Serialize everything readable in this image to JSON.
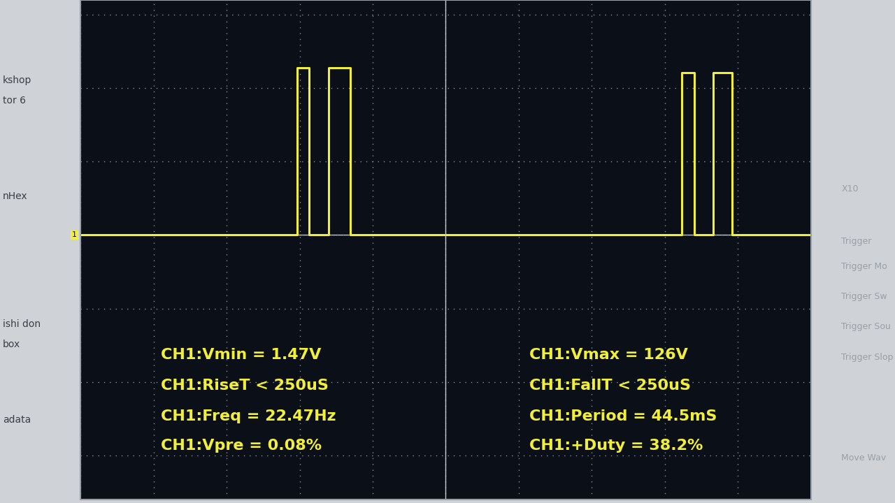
{
  "chart_data": {
    "type": "line",
    "x": [
      0,
      2.97,
      2.97,
      3.13,
      3.13,
      3.4,
      3.4,
      3.69,
      3.69,
      8.23,
      8.23,
      8.4,
      8.4,
      8.66,
      8.66,
      8.92,
      8.92,
      10
    ],
    "values": [
      0,
      0,
      2.28,
      2.28,
      0,
      0,
      2.28,
      2.28,
      0,
      0,
      2.21,
      2.21,
      0,
      0,
      2.21,
      2.21,
      0,
      0
    ],
    "color": "#f2ef3c",
    "xlim": [
      0,
      10
    ],
    "ylim": [
      -3.6,
      3.2
    ],
    "xticks": [
      0,
      1,
      2,
      3,
      4,
      5,
      6,
      7,
      8,
      9,
      10
    ],
    "yticks": [
      -3,
      -2,
      -1,
      0,
      1,
      2,
      3
    ],
    "grid": true,
    "tick_labels": false,
    "channel_marker": "1",
    "annotations": [
      "CH1:Vmin = 1.47V",
      "CH1:RiseT < 250uS",
      "CH1:Freq = 22.47Hz",
      "CH1:Vpre = 0.08%",
      "CH1:Vmax = 126V",
      "CH1:FallT < 250uS",
      "CH1:Period = 44.5mS",
      "CH1:+Duty = 38.2%"
    ],
    "desktop_labels": [
      "kshop",
      "tor 6",
      "nHex",
      "ishi don",
      "box",
      "adata"
    ],
    "side_panel": [
      "X10",
      "Trigger",
      "Trigger Mo",
      "Trigger Sw",
      "Trigger Sou",
      "Trigger Slop",
      "Move Wav"
    ]
  }
}
